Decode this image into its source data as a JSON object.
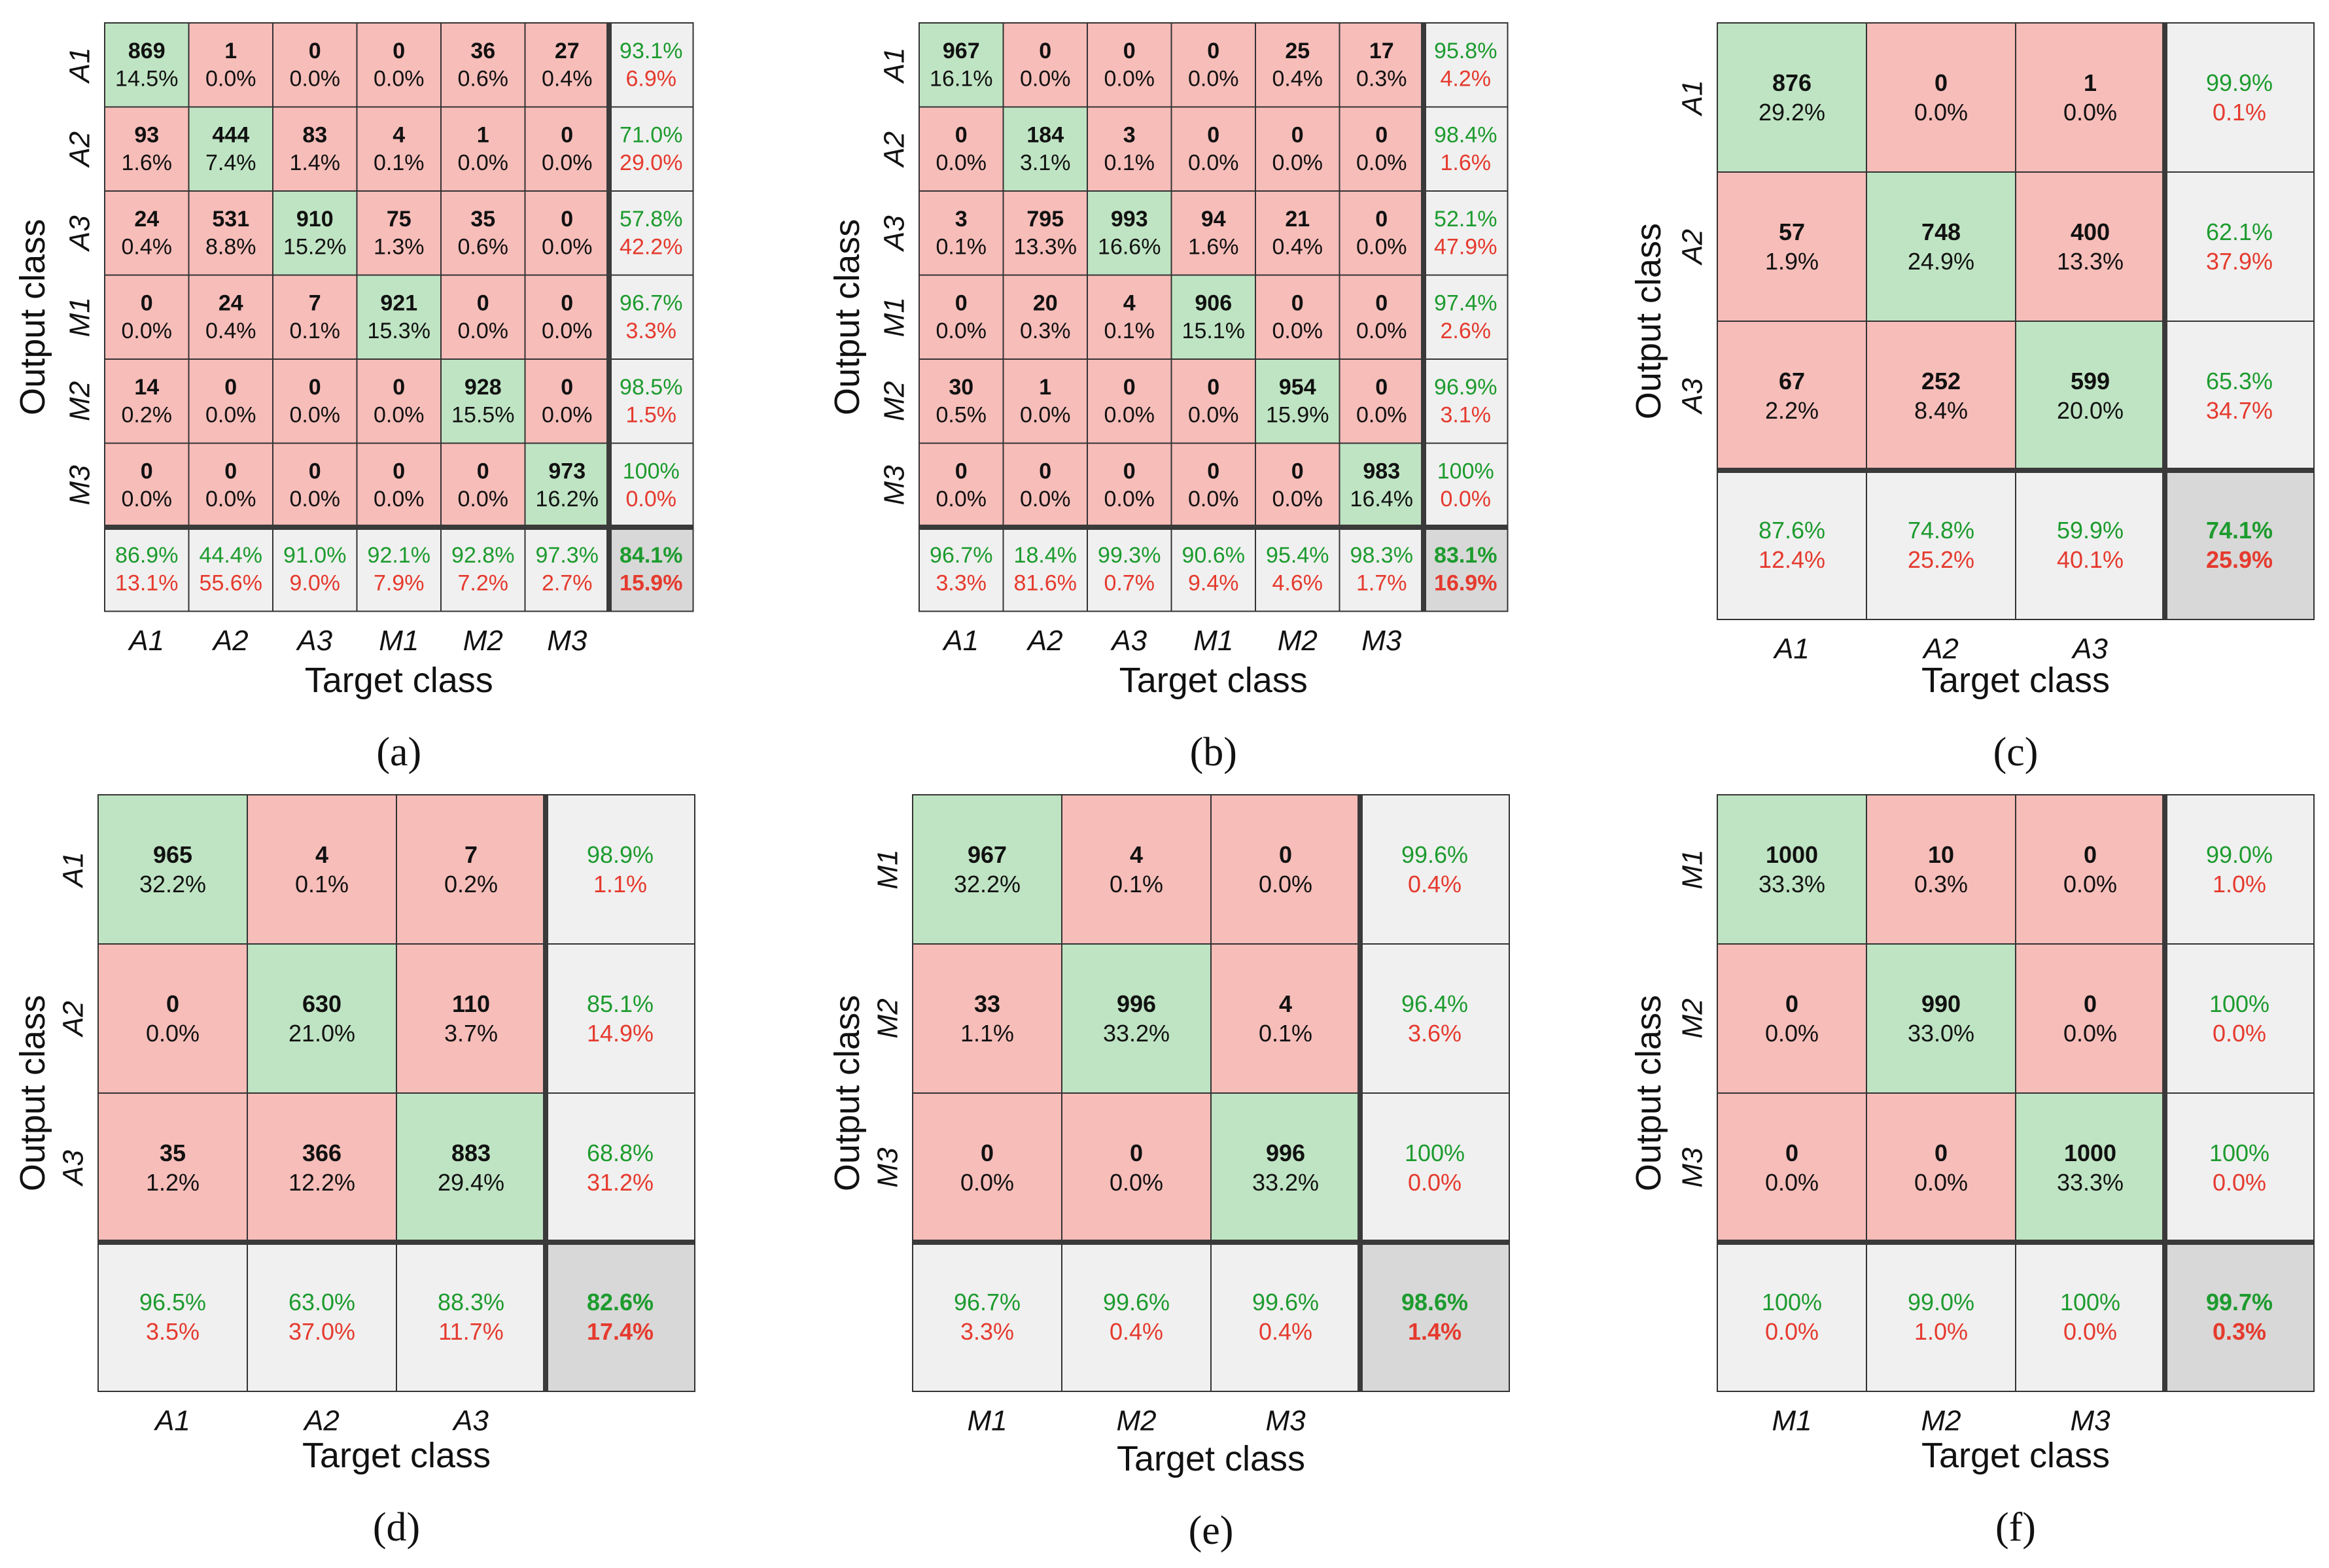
{
  "colors": {
    "correct": "#bfe4c3",
    "wrong": "#f7bdb9",
    "summary": "#f0f0f0",
    "overall": "#d8d8d8",
    "good_text": "#1d9b2e",
    "bad_text": "#e53a2e",
    "text": "#111111",
    "grid": "#333333",
    "separator": "#3a3a3a"
  },
  "chart_data": [
    {
      "type": "table",
      "panel": "(a)",
      "xlabel": "Target class",
      "ylabel": "Output class",
      "classes": [
        "A1",
        "A2",
        "A3",
        "M1",
        "M2",
        "M3"
      ],
      "counts": [
        [
          869,
          1,
          0,
          0,
          36,
          27
        ],
        [
          93,
          444,
          83,
          4,
          1,
          0
        ],
        [
          24,
          531,
          910,
          75,
          35,
          0
        ],
        [
          0,
          24,
          7,
          921,
          0,
          0
        ],
        [
          14,
          0,
          0,
          0,
          928,
          0
        ],
        [
          0,
          0,
          0,
          0,
          0,
          973
        ]
      ],
      "percents": [
        [
          "14.5%",
          "0.0%",
          "0.0%",
          "0.0%",
          "0.6%",
          "0.4%"
        ],
        [
          "1.6%",
          "7.4%",
          "1.4%",
          "0.1%",
          "0.0%",
          "0.0%"
        ],
        [
          "0.4%",
          "8.8%",
          "15.2%",
          "1.3%",
          "0.6%",
          "0.0%"
        ],
        [
          "0.0%",
          "0.4%",
          "0.1%",
          "15.3%",
          "0.0%",
          "0.0%"
        ],
        [
          "0.2%",
          "0.0%",
          "0.0%",
          "0.0%",
          "15.5%",
          "0.0%"
        ],
        [
          "0.0%",
          "0.0%",
          "0.0%",
          "0.0%",
          "0.0%",
          "16.2%"
        ]
      ],
      "row_summary": [
        [
          "93.1%",
          "6.9%"
        ],
        [
          "71.0%",
          "29.0%"
        ],
        [
          "57.8%",
          "42.2%"
        ],
        [
          "96.7%",
          "3.3%"
        ],
        [
          "98.5%",
          "1.5%"
        ],
        [
          "100%",
          "0.0%"
        ]
      ],
      "col_summary": [
        [
          "86.9%",
          "13.1%"
        ],
        [
          "44.4%",
          "55.6%"
        ],
        [
          "91.0%",
          "9.0%"
        ],
        [
          "92.1%",
          "7.9%"
        ],
        [
          "92.8%",
          "7.2%"
        ],
        [
          "97.3%",
          "2.7%"
        ]
      ],
      "overall": [
        "84.1%",
        "15.9%"
      ]
    },
    {
      "type": "table",
      "panel": "(b)",
      "xlabel": "Target class",
      "ylabel": "Output class",
      "classes": [
        "A1",
        "A2",
        "A3",
        "M1",
        "M2",
        "M3"
      ],
      "counts": [
        [
          967,
          0,
          0,
          0,
          25,
          17
        ],
        [
          0,
          184,
          3,
          0,
          0,
          0
        ],
        [
          3,
          795,
          993,
          94,
          21,
          0
        ],
        [
          0,
          20,
          4,
          906,
          0,
          0
        ],
        [
          30,
          1,
          0,
          0,
          954,
          0
        ],
        [
          0,
          0,
          0,
          0,
          0,
          983
        ]
      ],
      "percents": [
        [
          "16.1%",
          "0.0%",
          "0.0%",
          "0.0%",
          "0.4%",
          "0.3%"
        ],
        [
          "0.0%",
          "3.1%",
          "0.1%",
          "0.0%",
          "0.0%",
          "0.0%"
        ],
        [
          "0.1%",
          "13.3%",
          "16.6%",
          "1.6%",
          "0.4%",
          "0.0%"
        ],
        [
          "0.0%",
          "0.3%",
          "0.1%",
          "15.1%",
          "0.0%",
          "0.0%"
        ],
        [
          "0.5%",
          "0.0%",
          "0.0%",
          "0.0%",
          "15.9%",
          "0.0%"
        ],
        [
          "0.0%",
          "0.0%",
          "0.0%",
          "0.0%",
          "0.0%",
          "16.4%"
        ]
      ],
      "row_summary": [
        [
          "95.8%",
          "4.2%"
        ],
        [
          "98.4%",
          "1.6%"
        ],
        [
          "52.1%",
          "47.9%"
        ],
        [
          "97.4%",
          "2.6%"
        ],
        [
          "96.9%",
          "3.1%"
        ],
        [
          "100%",
          "0.0%"
        ]
      ],
      "col_summary": [
        [
          "96.7%",
          "3.3%"
        ],
        [
          "18.4%",
          "81.6%"
        ],
        [
          "99.3%",
          "0.7%"
        ],
        [
          "90.6%",
          "9.4%"
        ],
        [
          "95.4%",
          "4.6%"
        ],
        [
          "98.3%",
          "1.7%"
        ]
      ],
      "overall": [
        "83.1%",
        "16.9%"
      ]
    },
    {
      "type": "table",
      "panel": "(c)",
      "xlabel": "Target class",
      "ylabel": "Output class",
      "classes": [
        "A1",
        "A2",
        "A3"
      ],
      "counts": [
        [
          876,
          0,
          1
        ],
        [
          57,
          748,
          400
        ],
        [
          67,
          252,
          599
        ]
      ],
      "percents": [
        [
          "29.2%",
          "0.0%",
          "0.0%"
        ],
        [
          "1.9%",
          "24.9%",
          "13.3%"
        ],
        [
          "2.2%",
          "8.4%",
          "20.0%"
        ]
      ],
      "row_summary": [
        [
          "99.9%",
          "0.1%"
        ],
        [
          "62.1%",
          "37.9%"
        ],
        [
          "65.3%",
          "34.7%"
        ]
      ],
      "col_summary": [
        [
          "87.6%",
          "12.4%"
        ],
        [
          "74.8%",
          "25.2%"
        ],
        [
          "59.9%",
          "40.1%"
        ]
      ],
      "overall": [
        "74.1%",
        "25.9%"
      ]
    },
    {
      "type": "table",
      "panel": "(d)",
      "xlabel": "Target class",
      "ylabel": "Output class",
      "classes": [
        "A1",
        "A2",
        "A3"
      ],
      "counts": [
        [
          965,
          4,
          7
        ],
        [
          0,
          630,
          110
        ],
        [
          35,
          366,
          883
        ]
      ],
      "percents": [
        [
          "32.2%",
          "0.1%",
          "0.2%"
        ],
        [
          "0.0%",
          "21.0%",
          "3.7%"
        ],
        [
          "1.2%",
          "12.2%",
          "29.4%"
        ]
      ],
      "row_summary": [
        [
          "98.9%",
          "1.1%"
        ],
        [
          "85.1%",
          "14.9%"
        ],
        [
          "68.8%",
          "31.2%"
        ]
      ],
      "col_summary": [
        [
          "96.5%",
          "3.5%"
        ],
        [
          "63.0%",
          "37.0%"
        ],
        [
          "88.3%",
          "11.7%"
        ]
      ],
      "overall": [
        "82.6%",
        "17.4%"
      ]
    },
    {
      "type": "table",
      "panel": "(e)",
      "xlabel": "Target class",
      "ylabel": "Output class",
      "classes": [
        "M1",
        "M2",
        "M3"
      ],
      "counts": [
        [
          967,
          4,
          0
        ],
        [
          33,
          996,
          4
        ],
        [
          0,
          0,
          996
        ]
      ],
      "percents": [
        [
          "32.2%",
          "0.1%",
          "0.0%"
        ],
        [
          "1.1%",
          "33.2%",
          "0.1%"
        ],
        [
          "0.0%",
          "0.0%",
          "33.2%"
        ]
      ],
      "row_summary": [
        [
          "99.6%",
          "0.4%"
        ],
        [
          "96.4%",
          "3.6%"
        ],
        [
          "100%",
          "0.0%"
        ]
      ],
      "col_summary": [
        [
          "96.7%",
          "3.3%"
        ],
        [
          "99.6%",
          "0.4%"
        ],
        [
          "99.6%",
          "0.4%"
        ]
      ],
      "overall": [
        "98.6%",
        "1.4%"
      ]
    },
    {
      "type": "table",
      "panel": "(f)",
      "xlabel": "Target class",
      "ylabel": "Output class",
      "classes": [
        "M1",
        "M2",
        "M3"
      ],
      "counts": [
        [
          1000,
          10,
          0
        ],
        [
          0,
          990,
          0
        ],
        [
          0,
          0,
          1000
        ]
      ],
      "percents": [
        [
          "33.3%",
          "0.3%",
          "0.0%"
        ],
        [
          "0.0%",
          "33.0%",
          "0.0%"
        ],
        [
          "0.0%",
          "0.0%",
          "33.3%"
        ]
      ],
      "row_summary": [
        [
          "99.0%",
          "1.0%"
        ],
        [
          "100%",
          "0.0%"
        ],
        [
          "100%",
          "0.0%"
        ]
      ],
      "col_summary": [
        [
          "100%",
          "0.0%"
        ],
        [
          "99.0%",
          "1.0%"
        ],
        [
          "100%",
          "0.0%"
        ]
      ],
      "overall": [
        "99.7%",
        "0.3%"
      ]
    }
  ]
}
